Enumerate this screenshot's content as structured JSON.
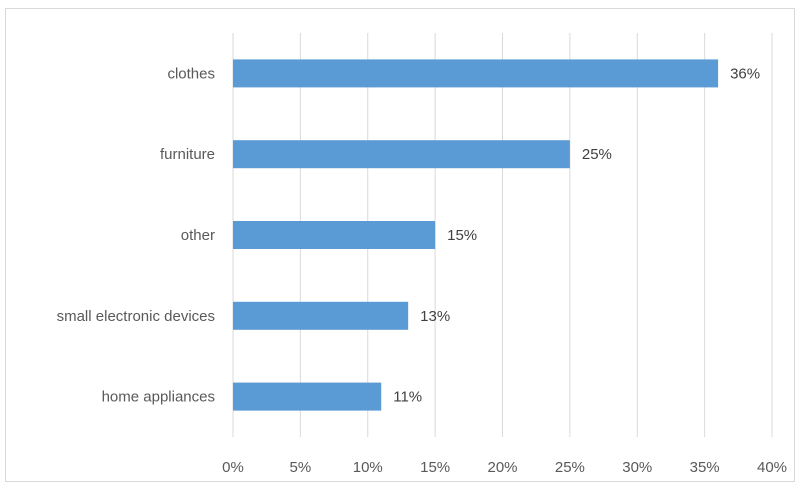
{
  "chart_data": {
    "type": "bar",
    "orientation": "horizontal",
    "categories": [
      "clothes",
      "furniture",
      "other",
      "small electronic devices",
      "home appliances"
    ],
    "values": [
      36,
      25,
      15,
      13,
      11
    ],
    "data_labels": [
      "36%",
      "25%",
      "15%",
      "13%",
      "11%"
    ],
    "xlim": [
      0,
      40
    ],
    "x_ticks": [
      0,
      5,
      10,
      15,
      20,
      25,
      30,
      35,
      40
    ],
    "x_tick_labels": [
      "0%",
      "5%",
      "10%",
      "15%",
      "20%",
      "25%",
      "30%",
      "35%",
      "40%"
    ],
    "title": "",
    "xlabel": "",
    "ylabel": "",
    "grid": "vertical",
    "legend": "none",
    "colors": {
      "bar": "#5b9bd5",
      "grid": "#d9d9d9"
    }
  }
}
